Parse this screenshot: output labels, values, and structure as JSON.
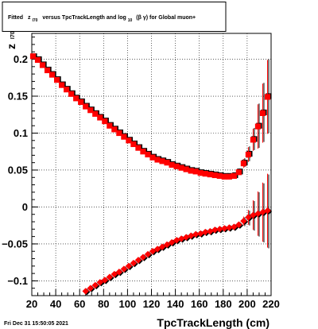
{
  "chart_data": {
    "type": "scatter",
    "title": {
      "lead": "Fitted",
      "z": "z",
      "z_sub": "I70",
      "middle": "versus TpcTrackLength and log",
      "log_sub": "10",
      "paren": "(β γ) for Global muon+"
    },
    "footer": "Fri Dec 31 15:50:05 2021",
    "xlabel": "TpcTrackLength (cm)",
    "ylabel": "z",
    "ylabel_sub": "I70",
    "xlim": [
      20,
      220
    ],
    "ylim": [
      -0.12,
      0.235
    ],
    "x_ticks": [
      20,
      40,
      60,
      80,
      100,
      120,
      140,
      160,
      180,
      200,
      220
    ],
    "x_tick_labels": [
      "20",
      "40",
      "60",
      "80",
      "100",
      "120",
      "140",
      "160",
      "180",
      "200",
      "220"
    ],
    "y_ticks": [
      0.2,
      0.15,
      0.1,
      0.05,
      0,
      -0.05,
      -0.1
    ],
    "y_tick_labels": [
      "0.2",
      "0.15",
      "0.1",
      "0.05",
      "0",
      "−0.05",
      "−0.1"
    ],
    "grid": true,
    "legend": "none",
    "series": [
      {
        "color": "#000000",
        "marker": "square",
        "x": [
          22,
          26,
          30,
          34,
          38,
          42,
          46,
          50,
          54,
          58,
          62,
          66,
          70,
          74,
          78,
          82,
          86,
          90,
          94,
          98,
          102,
          106,
          110,
          114,
          118,
          122,
          126,
          130,
          134,
          138,
          142,
          146,
          150,
          154,
          158,
          162,
          166,
          170,
          174,
          178,
          182,
          186,
          190,
          194,
          198,
          202,
          206,
          210,
          214,
          218
        ],
        "y": [
          0.204,
          0.2,
          0.193,
          0.186,
          0.18,
          0.173,
          0.166,
          0.16,
          0.154,
          0.148,
          0.143,
          0.137,
          0.132,
          0.127,
          0.122,
          0.117,
          0.111,
          0.106,
          0.101,
          0.096,
          0.091,
          0.086,
          0.081,
          0.076,
          0.072,
          0.068,
          0.065,
          0.063,
          0.061,
          0.058,
          0.056,
          0.054,
          0.052,
          0.05,
          0.049,
          0.047,
          0.046,
          0.045,
          0.044,
          0.043,
          0.042,
          0.042,
          0.043,
          0.048,
          0.06,
          0.072,
          0.092,
          0.11,
          0.128,
          0.15
        ],
        "err": [
          0.002,
          0.002,
          0.002,
          0.002,
          0.002,
          0.002,
          0.002,
          0.002,
          0.002,
          0.002,
          0.002,
          0.002,
          0.002,
          0.002,
          0.002,
          0.002,
          0.002,
          0.002,
          0.002,
          0.002,
          0.002,
          0.002,
          0.002,
          0.002,
          0.002,
          0.002,
          0.002,
          0.002,
          0.002,
          0.002,
          0.002,
          0.002,
          0.002,
          0.002,
          0.002,
          0.002,
          0.002,
          0.002,
          0.002,
          0.002,
          0.002,
          0.003,
          0.003,
          0.004,
          0.006,
          0.01,
          0.015,
          0.03,
          0.04,
          0.05
        ]
      },
      {
        "color": "#ff0000",
        "marker": "square",
        "x": [
          21,
          25,
          29,
          33,
          37,
          41,
          45,
          49,
          53,
          57,
          61,
          65,
          69,
          73,
          77,
          81,
          85,
          89,
          93,
          97,
          101,
          105,
          109,
          113,
          117,
          121,
          125,
          129,
          133,
          137,
          141,
          145,
          149,
          153,
          157,
          161,
          165,
          169,
          173,
          177,
          181,
          185,
          189,
          193,
          197,
          201,
          205,
          209,
          213,
          217
        ],
        "y": [
          0.204,
          0.199,
          0.192,
          0.185,
          0.179,
          0.172,
          0.165,
          0.159,
          0.153,
          0.147,
          0.142,
          0.136,
          0.131,
          0.126,
          0.121,
          0.116,
          0.11,
          0.105,
          0.1,
          0.095,
          0.09,
          0.085,
          0.08,
          0.075,
          0.071,
          0.067,
          0.064,
          0.062,
          0.06,
          0.057,
          0.055,
          0.053,
          0.051,
          0.049,
          0.048,
          0.046,
          0.045,
          0.044,
          0.043,
          0.042,
          0.041,
          0.041,
          0.042,
          0.047,
          0.059,
          0.071,
          0.091,
          0.109,
          0.127,
          0.149
        ],
        "err": [
          0.002,
          0.002,
          0.002,
          0.002,
          0.002,
          0.002,
          0.002,
          0.002,
          0.002,
          0.002,
          0.002,
          0.002,
          0.002,
          0.002,
          0.002,
          0.002,
          0.002,
          0.002,
          0.002,
          0.002,
          0.002,
          0.002,
          0.002,
          0.002,
          0.002,
          0.002,
          0.002,
          0.002,
          0.002,
          0.002,
          0.002,
          0.002,
          0.002,
          0.002,
          0.002,
          0.002,
          0.002,
          0.002,
          0.002,
          0.002,
          0.002,
          0.003,
          0.003,
          0.004,
          0.006,
          0.01,
          0.015,
          0.03,
          0.04,
          0.05
        ]
      },
      {
        "color": "#000000",
        "marker": "diamond",
        "x": [
          66,
          70,
          74,
          78,
          82,
          86,
          90,
          94,
          98,
          102,
          106,
          110,
          114,
          118,
          122,
          126,
          130,
          134,
          138,
          142,
          146,
          150,
          154,
          158,
          162,
          166,
          170,
          174,
          178,
          182,
          186,
          190,
          194,
          198,
          202,
          206,
          210,
          214,
          218
        ],
        "y": [
          -0.115,
          -0.111,
          -0.107,
          -0.103,
          -0.1,
          -0.096,
          -0.092,
          -0.089,
          -0.085,
          -0.081,
          -0.077,
          -0.073,
          -0.069,
          -0.065,
          -0.061,
          -0.058,
          -0.055,
          -0.052,
          -0.049,
          -0.046,
          -0.044,
          -0.042,
          -0.04,
          -0.038,
          -0.037,
          -0.035,
          -0.034,
          -0.032,
          -0.031,
          -0.03,
          -0.029,
          -0.028,
          -0.025,
          -0.02,
          -0.015,
          -0.012,
          -0.01,
          -0.008,
          -0.006
        ],
        "err": [
          0.002,
          0.002,
          0.002,
          0.002,
          0.002,
          0.002,
          0.002,
          0.002,
          0.002,
          0.002,
          0.002,
          0.002,
          0.002,
          0.002,
          0.002,
          0.002,
          0.002,
          0.002,
          0.002,
          0.002,
          0.002,
          0.002,
          0.002,
          0.002,
          0.002,
          0.002,
          0.002,
          0.002,
          0.002,
          0.002,
          0.002,
          0.003,
          0.004,
          0.006,
          0.01,
          0.02,
          0.03,
          0.04,
          0.05
        ]
      },
      {
        "color": "#ff0000",
        "marker": "diamond",
        "x": [
          65,
          69,
          73,
          77,
          81,
          85,
          89,
          93,
          97,
          101,
          105,
          109,
          113,
          117,
          121,
          125,
          129,
          133,
          137,
          141,
          145,
          149,
          153,
          157,
          161,
          165,
          169,
          173,
          177,
          181,
          185,
          189,
          193,
          197,
          201,
          205,
          209,
          213,
          217
        ],
        "y": [
          -0.114,
          -0.11,
          -0.106,
          -0.102,
          -0.099,
          -0.095,
          -0.091,
          -0.088,
          -0.084,
          -0.08,
          -0.076,
          -0.072,
          -0.068,
          -0.064,
          -0.06,
          -0.057,
          -0.054,
          -0.051,
          -0.048,
          -0.045,
          -0.043,
          -0.041,
          -0.039,
          -0.037,
          -0.036,
          -0.034,
          -0.033,
          -0.031,
          -0.03,
          -0.029,
          -0.028,
          -0.027,
          -0.024,
          -0.019,
          -0.014,
          -0.011,
          -0.009,
          -0.007,
          -0.005
        ],
        "err": [
          0.002,
          0.002,
          0.002,
          0.002,
          0.002,
          0.002,
          0.002,
          0.002,
          0.002,
          0.002,
          0.002,
          0.002,
          0.002,
          0.002,
          0.002,
          0.002,
          0.002,
          0.002,
          0.002,
          0.002,
          0.002,
          0.002,
          0.002,
          0.002,
          0.002,
          0.002,
          0.002,
          0.002,
          0.002,
          0.002,
          0.002,
          0.003,
          0.004,
          0.006,
          0.01,
          0.02,
          0.03,
          0.04,
          0.05
        ]
      }
    ]
  }
}
